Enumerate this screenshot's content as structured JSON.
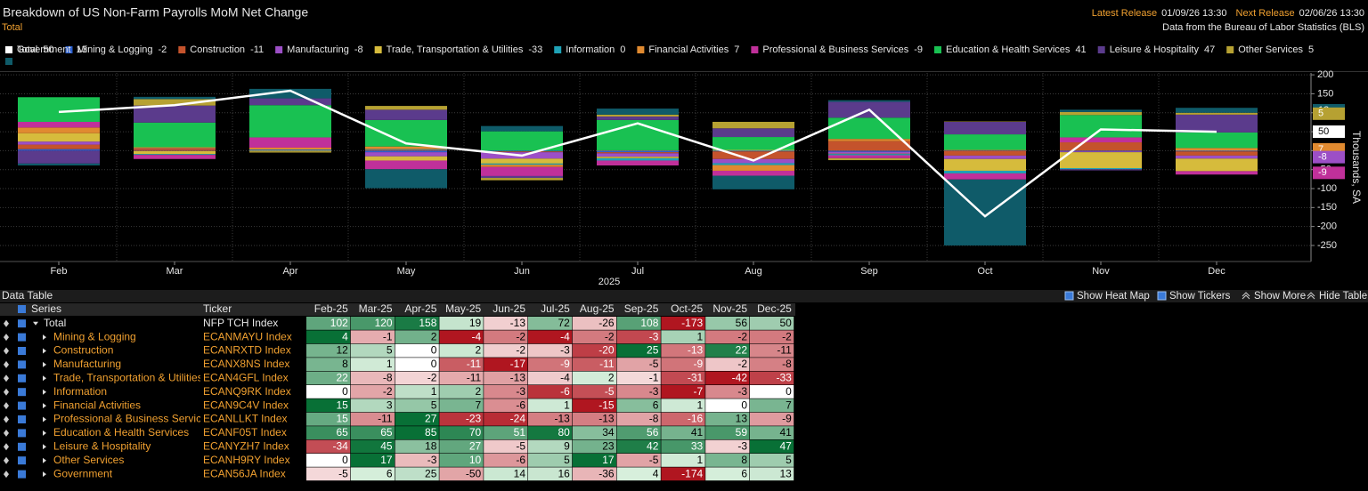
{
  "header": {
    "title": "Breakdown of US Non-Farm Payrolls MoM Net Change",
    "subtitle": "Total",
    "latest_label": "Latest Release",
    "latest": "01/09/26 13:30",
    "next_label": "Next Release",
    "next": "02/06/26 13:30",
    "source": "Data from the Bureau of Labor Statistics (BLS)"
  },
  "chart_data": {
    "type": "stacked_bar_line",
    "categories": [
      "Feb",
      "Mar",
      "Apr",
      "May",
      "Jun",
      "Jul",
      "Aug",
      "Sep",
      "Oct",
      "Nov",
      "Dec"
    ],
    "x_label": "2025",
    "y_label": "Thousands, SA",
    "ylim": [
      -290,
      205
    ],
    "yticks": [
      200,
      150,
      100,
      50,
      0,
      -50,
      -100,
      -150,
      -200,
      -250
    ],
    "grid": true,
    "tagged_series": [
      10,
      9,
      5,
      2,
      6
    ],
    "total": {
      "name": "Total",
      "color": "#ffffff",
      "values": [
        102,
        120,
        158,
        19,
        -13,
        72,
        -26,
        108,
        -173,
        56,
        50
      ]
    },
    "series": [
      {
        "name": "Mining & Logging",
        "color": "#2b5fce",
        "values": [
          4,
          -1,
          2,
          -4,
          -2,
          -4,
          -2,
          -3,
          1,
          -2,
          -2
        ]
      },
      {
        "name": "Construction",
        "color": "#c4532c",
        "values": [
          12,
          5,
          0,
          2,
          -2,
          -3,
          -20,
          25,
          -13,
          22,
          -11
        ]
      },
      {
        "name": "Manufacturing",
        "color": "#9c4fc6",
        "values": [
          8,
          1,
          0,
          -11,
          -17,
          -9,
          -11,
          -5,
          -9,
          -2,
          -8
        ]
      },
      {
        "name": "Trade, Transportation & Utilities",
        "color": "#d6bb3c",
        "values": [
          22,
          -8,
          -2,
          -11,
          -13,
          -4,
          2,
          -1,
          -31,
          -42,
          -33
        ]
      },
      {
        "name": "Information",
        "color": "#1fa2b6",
        "values": [
          0,
          -2,
          1,
          2,
          -3,
          -6,
          -5,
          -3,
          -7,
          -3,
          0
        ]
      },
      {
        "name": "Financial Activities",
        "color": "#e08a30",
        "values": [
          15,
          3,
          5,
          7,
          -6,
          1,
          -15,
          6,
          1,
          0,
          7
        ]
      },
      {
        "name": "Professional & Business Services",
        "color": "#c0309a",
        "values": [
          15,
          -11,
          27,
          -23,
          -24,
          -13,
          -13,
          -8,
          -16,
          13,
          -9
        ]
      },
      {
        "name": "Education & Health Services",
        "color": "#19c152",
        "values": [
          65,
          65,
          85,
          70,
          51,
          80,
          34,
          56,
          41,
          59,
          41
        ]
      },
      {
        "name": "Leisure & Hospitality",
        "color": "#5b3b8c",
        "values": [
          -34,
          45,
          18,
          27,
          -5,
          9,
          23,
          42,
          33,
          -3,
          47
        ]
      },
      {
        "name": "Other Services",
        "color": "#b6a132",
        "values": [
          0,
          17,
          -3,
          10,
          -6,
          5,
          17,
          -5,
          1,
          8,
          5
        ]
      },
      {
        "name": "Government",
        "color": "#0f5b69",
        "values": [
          -5,
          6,
          25,
          -50,
          14,
          16,
          -36,
          4,
          -174,
          6,
          13
        ]
      }
    ]
  },
  "table": {
    "title": "Data Table",
    "buttons": [
      "Show Heat Map",
      "Show Tickers",
      "Show More",
      "Hide Table"
    ],
    "series_header": "Series",
    "ticker_header": "Ticker",
    "columns": [
      "Feb-25",
      "Mar-25",
      "Apr-25",
      "May-25",
      "Jun-25",
      "Jul-25",
      "Aug-25",
      "Sep-25",
      "Oct-25",
      "Nov-25",
      "Dec-25"
    ],
    "tickers": [
      "NFP TCH Index",
      "ECANMAYU Index",
      "ECANRXTD Index",
      "ECANX8NS Index",
      "ECAN4GFL Index",
      "ECANQ9RK Index",
      "ECAN9C4V Index",
      "ECANLLKT Index",
      "ECANF05T Index",
      "ECANYZH7 Index",
      "ECANH9RY Index",
      "ECAN56JA Index"
    ]
  }
}
